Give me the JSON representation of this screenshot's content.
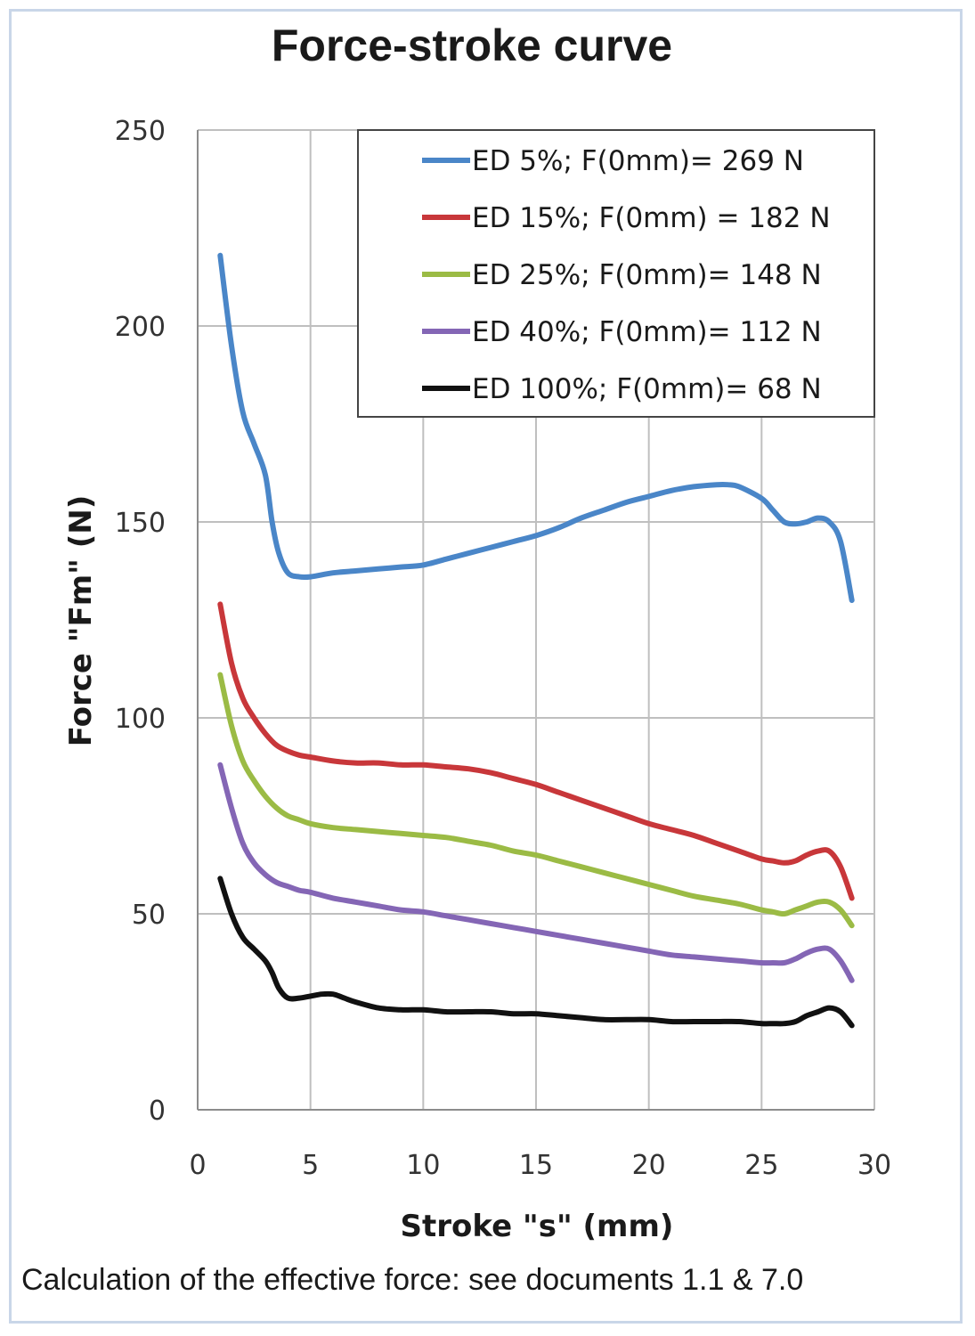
{
  "colors": {
    "background": "#ffffff",
    "frame": "#c9d6e8",
    "grid": "#bfbfbf",
    "axis": "#8c8c8c"
  },
  "chart_data": {
    "type": "line",
    "title": "Force-stroke curve",
    "xlabel": "Stroke \"s\" (mm)",
    "ylabel": "Force \"Fm\" (N)",
    "xlim": [
      0,
      30
    ],
    "ylim": [
      0,
      250
    ],
    "xticks": [
      "0",
      "5",
      "10",
      "15",
      "20",
      "25",
      "30"
    ],
    "yticks": [
      "0",
      "50",
      "100",
      "150",
      "200",
      "250"
    ],
    "grid": true,
    "legend_position": "top-right",
    "series": [
      {
        "name": "ED 5%; F(0mm)= 269 N",
        "color": "#4a86c8",
        "x": [
          1,
          1.5,
          2,
          2.5,
          3,
          3.3,
          3.6,
          4,
          4.5,
          5,
          6,
          7,
          8,
          9,
          10,
          11,
          12,
          13,
          14,
          15,
          16,
          17,
          18,
          19,
          20,
          21,
          22,
          23,
          23.5,
          24,
          25,
          25.5,
          26,
          26.5,
          27,
          27.5,
          28,
          28.5,
          29
        ],
        "y": [
          218,
          195,
          178,
          170,
          162,
          150,
          142,
          137,
          136,
          136,
          137,
          137.5,
          138,
          138.5,
          139,
          140.5,
          142,
          143.5,
          145,
          146.5,
          148.5,
          151,
          153,
          155,
          156.5,
          158,
          159,
          159.5,
          159.5,
          159,
          156,
          153,
          150,
          149.5,
          150,
          151,
          150,
          145,
          130
        ]
      },
      {
        "name": "ED 15%; F(0mm) = 182 N",
        "color": "#c8373a",
        "x": [
          1,
          1.5,
          2,
          2.5,
          3,
          3.5,
          4,
          4.5,
          5,
          6,
          7,
          8,
          9,
          10,
          11,
          12,
          13,
          14,
          15,
          16,
          17,
          18,
          19,
          20,
          21,
          22,
          23,
          24,
          25,
          25.5,
          26,
          26.5,
          27,
          27.5,
          28,
          28.5,
          29
        ],
        "y": [
          129,
          114,
          105,
          100,
          96,
          93,
          91.5,
          90.5,
          90,
          89,
          88.5,
          88.5,
          88,
          88,
          87.5,
          87,
          86,
          84.5,
          83,
          81,
          79,
          77,
          75,
          73,
          71.5,
          70,
          68,
          66,
          64,
          63.5,
          63,
          63.5,
          65,
          66,
          66,
          62,
          54
        ]
      },
      {
        "name": "ED 25%; F(0mm)= 148 N",
        "color": "#9bbb45",
        "x": [
          1,
          1.5,
          2,
          2.5,
          3,
          3.5,
          4,
          4.5,
          5,
          6,
          7,
          8,
          9,
          10,
          11,
          12,
          13,
          14,
          15,
          16,
          17,
          18,
          19,
          20,
          21,
          22,
          23,
          24,
          25,
          25.5,
          26,
          26.5,
          27,
          27.5,
          28,
          28.5,
          29
        ],
        "y": [
          111,
          98,
          89,
          84,
          80,
          77,
          75,
          74,
          73,
          72,
          71.5,
          71,
          70.5,
          70,
          69.5,
          68.5,
          67.5,
          66,
          65,
          63.5,
          62,
          60.5,
          59,
          57.5,
          56,
          54.5,
          53.5,
          52.5,
          51,
          50.5,
          50,
          51,
          52,
          53,
          53,
          51,
          47
        ]
      },
      {
        "name": "ED 40%; F(0mm)= 112 N",
        "color": "#8466b5",
        "x": [
          1,
          1.5,
          2,
          2.5,
          3,
          3.5,
          4,
          4.5,
          5,
          6,
          7,
          8,
          9,
          10,
          11,
          12,
          13,
          14,
          15,
          16,
          17,
          18,
          19,
          20,
          21,
          22,
          23,
          24,
          25,
          25.5,
          26,
          26.5,
          27,
          27.5,
          28,
          28.5,
          29
        ],
        "y": [
          88,
          77,
          68,
          63,
          60,
          58,
          57,
          56,
          55.5,
          54,
          53,
          52,
          51,
          50.5,
          49.5,
          48.5,
          47.5,
          46.5,
          45.5,
          44.5,
          43.5,
          42.5,
          41.5,
          40.5,
          39.5,
          39,
          38.5,
          38,
          37.5,
          37.5,
          37.5,
          38.5,
          40,
          41,
          41,
          38,
          33
        ]
      },
      {
        "name": "ED 100%; F(0mm)= 68 N",
        "color": "#111111",
        "x": [
          1,
          1.5,
          2,
          2.5,
          3,
          3.3,
          3.6,
          4,
          4.5,
          5,
          5.5,
          6,
          6.5,
          7,
          8,
          9,
          10,
          11,
          12,
          13,
          14,
          15,
          16,
          17,
          18,
          19,
          20,
          21,
          22,
          23,
          24,
          25,
          25.5,
          26,
          26.5,
          27,
          27.5,
          28,
          28.5,
          29
        ],
        "y": [
          59,
          50,
          44,
          41,
          38,
          35,
          31,
          28.5,
          28.5,
          29,
          29.5,
          29.5,
          28.5,
          27.5,
          26,
          25.5,
          25.5,
          25,
          25,
          25,
          24.5,
          24.5,
          24,
          23.5,
          23,
          23,
          23,
          22.5,
          22.5,
          22.5,
          22.5,
          22,
          22,
          22,
          22.5,
          24,
          25,
          26,
          25,
          21.5
        ]
      }
    ]
  },
  "footer": {
    "caption": "Calculation of the effective force: see documents 1.1 & 7.0"
  }
}
